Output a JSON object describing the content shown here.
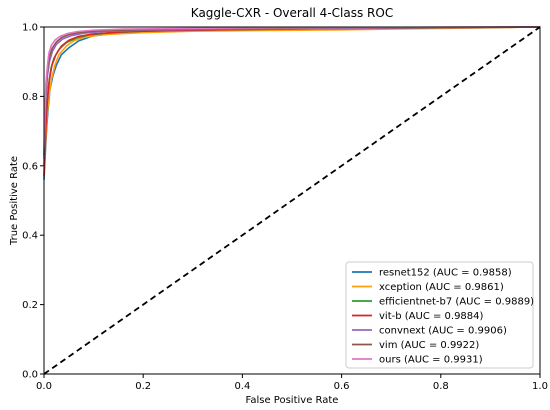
{
  "chart_data": {
    "type": "line",
    "title": "Kaggle-CXR - Overall 4-Class ROC",
    "xlabel": "False Positive Rate",
    "ylabel": "True Positive Rate",
    "xlim": [
      0.0,
      1.0
    ],
    "ylim": [
      0.0,
      1.0
    ],
    "xticks": [
      "0.0",
      "0.2",
      "0.4",
      "0.6",
      "0.8",
      "1.0"
    ],
    "yticks": [
      "0.0",
      "0.2",
      "0.4",
      "0.6",
      "0.8",
      "1.0"
    ],
    "grid": false,
    "legend_position": "lower-right",
    "series": [
      {
        "name": "resnet152 (AUC = 0.9858)",
        "color": "#1f77b4",
        "points": [
          [
            0,
            0.56
          ],
          [
            0.002,
            0.62
          ],
          [
            0.005,
            0.7
          ],
          [
            0.008,
            0.76
          ],
          [
            0.012,
            0.82
          ],
          [
            0.018,
            0.86
          ],
          [
            0.025,
            0.89
          ],
          [
            0.035,
            0.92
          ],
          [
            0.05,
            0.94
          ],
          [
            0.07,
            0.96
          ],
          [
            0.1,
            0.975
          ],
          [
            0.15,
            0.982
          ],
          [
            0.2,
            0.986
          ],
          [
            0.3,
            0.989
          ],
          [
            0.5,
            0.993
          ],
          [
            0.7,
            0.996
          ],
          [
            0.85,
            0.998
          ],
          [
            1.0,
            1.0
          ]
        ]
      },
      {
        "name": "xception (AUC = 0.9861)",
        "color": "#ff9f0e",
        "points": [
          [
            0,
            0.58
          ],
          [
            0.003,
            0.66
          ],
          [
            0.006,
            0.74
          ],
          [
            0.01,
            0.8
          ],
          [
            0.015,
            0.85
          ],
          [
            0.022,
            0.89
          ],
          [
            0.03,
            0.92
          ],
          [
            0.045,
            0.945
          ],
          [
            0.06,
            0.96
          ],
          [
            0.08,
            0.97
          ],
          [
            0.12,
            0.978
          ],
          [
            0.2,
            0.984
          ],
          [
            0.3,
            0.988
          ],
          [
            0.45,
            0.99
          ],
          [
            0.6,
            0.992
          ],
          [
            0.8,
            0.996
          ],
          [
            1.0,
            1.0
          ]
        ]
      },
      {
        "name": "efficientnet-b7 (AUC = 0.9889)",
        "color": "#2ca02c",
        "points": [
          [
            0,
            0.6
          ],
          [
            0.002,
            0.68
          ],
          [
            0.005,
            0.76
          ],
          [
            0.009,
            0.83
          ],
          [
            0.014,
            0.88
          ],
          [
            0.02,
            0.91
          ],
          [
            0.03,
            0.935
          ],
          [
            0.045,
            0.955
          ],
          [
            0.065,
            0.968
          ],
          [
            0.09,
            0.977
          ],
          [
            0.13,
            0.983
          ],
          [
            0.2,
            0.988
          ],
          [
            0.35,
            0.992
          ],
          [
            0.55,
            0.995
          ],
          [
            0.75,
            0.997
          ],
          [
            1.0,
            1.0
          ]
        ]
      },
      {
        "name": "vit-b (AUC = 0.9884)",
        "color": "#d62728",
        "points": [
          [
            0,
            0.57
          ],
          [
            0.002,
            0.64
          ],
          [
            0.004,
            0.72
          ],
          [
            0.007,
            0.79
          ],
          [
            0.011,
            0.85
          ],
          [
            0.016,
            0.89
          ],
          [
            0.024,
            0.92
          ],
          [
            0.035,
            0.945
          ],
          [
            0.05,
            0.962
          ],
          [
            0.07,
            0.973
          ],
          [
            0.1,
            0.98
          ],
          [
            0.16,
            0.986
          ],
          [
            0.25,
            0.99
          ],
          [
            0.4,
            0.993
          ],
          [
            0.6,
            0.996
          ],
          [
            0.8,
            0.998
          ],
          [
            1.0,
            1.0
          ]
        ]
      },
      {
        "name": "convnext (AUC = 0.9906)",
        "color": "#9467bd",
        "points": [
          [
            0,
            0.62
          ],
          [
            0.002,
            0.72
          ],
          [
            0.004,
            0.8
          ],
          [
            0.007,
            0.86
          ],
          [
            0.011,
            0.9
          ],
          [
            0.017,
            0.93
          ],
          [
            0.025,
            0.95
          ],
          [
            0.037,
            0.965
          ],
          [
            0.055,
            0.975
          ],
          [
            0.08,
            0.982
          ],
          [
            0.12,
            0.987
          ],
          [
            0.2,
            0.991
          ],
          [
            0.35,
            0.994
          ],
          [
            0.55,
            0.996
          ],
          [
            0.75,
            0.998
          ],
          [
            1.0,
            1.0
          ]
        ]
      },
      {
        "name": "vim (AUC = 0.9922)",
        "color": "#8c564b",
        "points": [
          [
            0,
            0.63
          ],
          [
            0.002,
            0.74
          ],
          [
            0.004,
            0.82
          ],
          [
            0.007,
            0.88
          ],
          [
            0.011,
            0.915
          ],
          [
            0.017,
            0.94
          ],
          [
            0.025,
            0.957
          ],
          [
            0.036,
            0.97
          ],
          [
            0.052,
            0.979
          ],
          [
            0.075,
            0.985
          ],
          [
            0.11,
            0.989
          ],
          [
            0.18,
            0.992
          ],
          [
            0.3,
            0.995
          ],
          [
            0.5,
            0.997
          ],
          [
            0.75,
            0.999
          ],
          [
            1.0,
            1.0
          ]
        ]
      },
      {
        "name": "ours (AUC = 0.9931)",
        "color": "#e377c2",
        "points": [
          [
            0,
            0.65
          ],
          [
            0.002,
            0.76
          ],
          [
            0.004,
            0.84
          ],
          [
            0.007,
            0.89
          ],
          [
            0.01,
            0.925
          ],
          [
            0.015,
            0.948
          ],
          [
            0.022,
            0.962
          ],
          [
            0.032,
            0.973
          ],
          [
            0.047,
            0.981
          ],
          [
            0.068,
            0.987
          ],
          [
            0.1,
            0.991
          ],
          [
            0.16,
            0.994
          ],
          [
            0.28,
            0.996
          ],
          [
            0.48,
            0.998
          ],
          [
            0.72,
            0.999
          ],
          [
            1.0,
            1.0
          ]
        ]
      }
    ],
    "reference_line": {
      "points": [
        [
          0,
          0
        ],
        [
          1,
          1
        ]
      ],
      "color": "#000000",
      "style": "dashed"
    }
  }
}
